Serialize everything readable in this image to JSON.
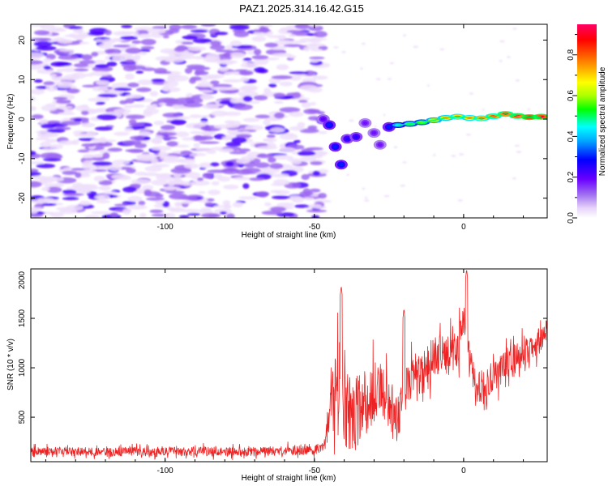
{
  "chart_data": [
    {
      "type": "heatmap",
      "title": "PAZ1.2025.314.16.42.G15",
      "xlabel": "Height of straight line (km)",
      "ylabel": "Frequency (Hz)",
      "xlim": [
        -145,
        28
      ],
      "ylim": [
        -25,
        24
      ],
      "xticks": [
        -100,
        -50,
        0
      ],
      "yticks": [
        -20,
        -10,
        0,
        10,
        20
      ],
      "colorbar": {
        "label": "Normalized spectral amplitude",
        "range": [
          0,
          0.95
        ],
        "ticks": [
          0.0,
          0.2,
          0.4,
          0.6,
          0.8
        ],
        "colormap": "rainbow (white → purple → blue → cyan → green → yellow → red → magenta)",
        "colors": [
          "#ffffff",
          "#e8d4fa",
          "#a070f0",
          "#6a00ff",
          "#0000ff",
          "#00aaff",
          "#00ffff",
          "#00ff00",
          "#aaff00",
          "#ffff00",
          "#ff8800",
          "#ff0000",
          "#ff0066"
        ]
      },
      "regions": [
        {
          "description": "diffuse noise",
          "x_range": [
            -145,
            -47
          ],
          "freq_range": [
            -25,
            24
          ],
          "amplitude": 0.1
        },
        {
          "description": "transition zone",
          "x_range": [
            -47,
            -22
          ],
          "freq_range": [
            -13,
            4
          ],
          "amplitude": 0.35
        },
        {
          "description": "narrow carrier line",
          "x_range": [
            -22,
            28
          ],
          "frequency": [
            -1.5,
            1.5
          ],
          "amplitude": 0.75
        }
      ],
      "signal_line": [
        {
          "x": -47,
          "f": 0.0,
          "a": 0.2
        },
        {
          "x": -45,
          "f": -1.5,
          "a": 0.3
        },
        {
          "x": -43,
          "f": -7.0,
          "a": 0.3
        },
        {
          "x": -41,
          "f": -11.5,
          "a": 0.3
        },
        {
          "x": -39,
          "f": -5.0,
          "a": 0.25
        },
        {
          "x": -36,
          "f": -4.5,
          "a": 0.25
        },
        {
          "x": -33,
          "f": -1.0,
          "a": 0.18
        },
        {
          "x": -30,
          "f": -3.5,
          "a": 0.18
        },
        {
          "x": -28,
          "f": -6.5,
          "a": 0.18
        },
        {
          "x": -25,
          "f": -2.0,
          "a": 0.3
        },
        {
          "x": -22,
          "f": -1.5,
          "a": 0.45
        },
        {
          "x": -18,
          "f": -1.2,
          "a": 0.55
        },
        {
          "x": -14,
          "f": -0.8,
          "a": 0.6
        },
        {
          "x": -10,
          "f": -0.3,
          "a": 0.7
        },
        {
          "x": -6,
          "f": 0.3,
          "a": 0.75
        },
        {
          "x": -2,
          "f": 0.6,
          "a": 0.8
        },
        {
          "x": 2,
          "f": 0.3,
          "a": 0.78
        },
        {
          "x": 6,
          "f": 0.2,
          "a": 0.82
        },
        {
          "x": 10,
          "f": 0.7,
          "a": 0.85
        },
        {
          "x": 14,
          "f": 1.3,
          "a": 0.88
        },
        {
          "x": 18,
          "f": 0.8,
          "a": 0.9
        },
        {
          "x": 22,
          "f": 0.5,
          "a": 0.95
        },
        {
          "x": 26,
          "f": 0.6,
          "a": 0.93
        }
      ]
    },
    {
      "type": "line",
      "xlabel": "Height of straight line (km)",
      "ylabel": "SNR (10 * v/v)",
      "xlim": [
        -145,
        28
      ],
      "ylim": [
        50,
        2000
      ],
      "xticks": [
        -100,
        -50,
        0
      ],
      "yticks": [
        500,
        1000,
        1500,
        2000
      ],
      "series": [
        {
          "name": "SNR",
          "color": "#ee2222",
          "x": [
            -145,
            -140,
            -135,
            -130,
            -125,
            -120,
            -115,
            -110,
            -105,
            -100,
            -95,
            -90,
            -85,
            -80,
            -75,
            -70,
            -65,
            -60,
            -55,
            -50,
            -47,
            -45,
            -43,
            -42,
            -41,
            -40,
            -39,
            -38,
            -36,
            -34,
            -32,
            -30,
            -28,
            -26,
            -24,
            -22,
            -20,
            -18,
            -16,
            -14,
            -12,
            -10,
            -8,
            -6,
            -4,
            -2,
            0,
            1,
            2,
            4,
            6,
            8,
            10,
            12,
            14,
            16,
            18,
            20,
            22,
            24,
            26,
            28
          ],
          "values": [
            150,
            155,
            160,
            150,
            155,
            145,
            150,
            155,
            150,
            160,
            150,
            155,
            160,
            150,
            150,
            150,
            155,
            160,
            165,
            170,
            200,
            450,
            800,
            1000,
            800,
            600,
            550,
            500,
            550,
            600,
            700,
            750,
            800,
            650,
            550,
            500,
            750,
            900,
            850,
            950,
            1000,
            1100,
            1150,
            1100,
            1150,
            1200,
            1450,
            1300,
            1050,
            850,
            750,
            850,
            950,
            950,
            1000,
            1050,
            1100,
            1150,
            1200,
            1250,
            1300,
            1350
          ],
          "peak_values": [
            {
              "x": -41,
              "value": 1830
            },
            {
              "x": -20,
              "value": 1600
            },
            {
              "x": 1,
              "value": 2000
            }
          ],
          "noise_amplitude": [
            {
              "x": -145,
              "value": 60
            },
            {
              "x": -47,
              "value": 70
            },
            {
              "x": -42,
              "value": 650
            },
            {
              "x": -30,
              "value": 450
            },
            {
              "x": -10,
              "value": 300
            },
            {
              "x": 28,
              "value": 200
            }
          ]
        }
      ]
    }
  ]
}
